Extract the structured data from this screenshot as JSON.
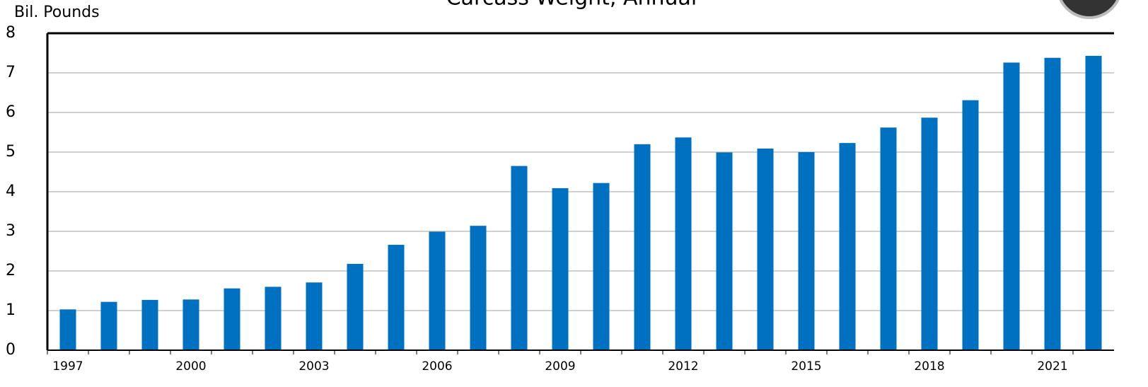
{
  "chart_data": {
    "type": "bar",
    "title": "Carcass Weight, Annual",
    "y_label": "Bil. Pounds",
    "categories": [
      "1997",
      null,
      null,
      "2000",
      null,
      null,
      "2003",
      null,
      null,
      "2006",
      null,
      null,
      "2009",
      null,
      null,
      "2012",
      null,
      null,
      "2015",
      null,
      null,
      "2018",
      null,
      null,
      "2021",
      null
    ],
    "values": [
      1.03,
      1.22,
      1.27,
      1.28,
      1.56,
      1.6,
      1.71,
      2.18,
      2.66,
      2.99,
      3.14,
      4.65,
      4.09,
      4.22,
      5.2,
      5.37,
      4.99,
      5.09,
      5.0,
      5.23,
      5.62,
      5.87,
      6.31,
      7.26,
      7.38,
      7.43
    ],
    "color": "#0070c0",
    "ylim": [
      0,
      8
    ],
    "yticks": [
      0,
      1,
      2,
      3,
      4,
      5,
      6,
      7,
      8
    ],
    "grid": true
  }
}
